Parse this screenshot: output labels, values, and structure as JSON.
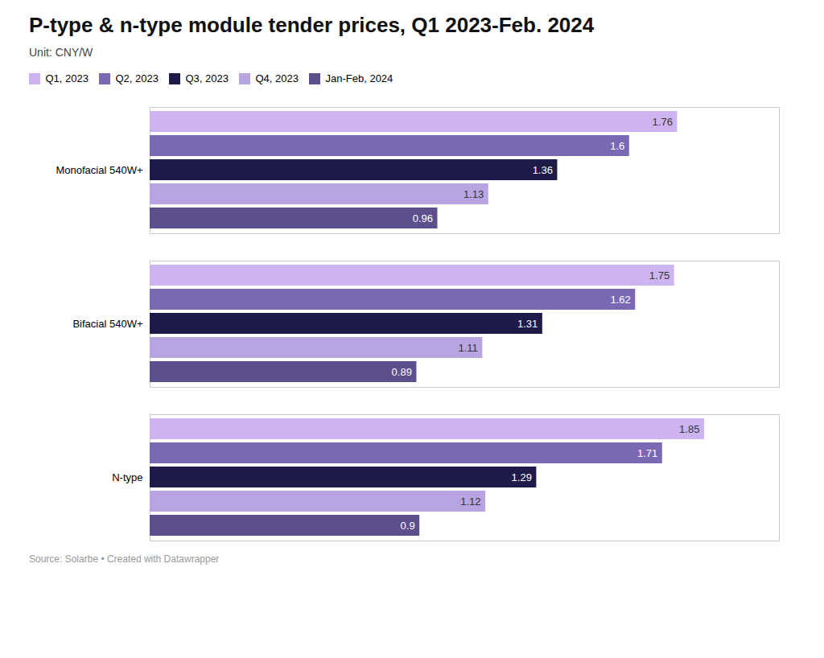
{
  "chart_data": {
    "type": "bar",
    "orientation": "horizontal",
    "title": "P-type & n-type module tender prices, Q1 2023-Feb. 2024",
    "subtitle": "Unit: CNY/W",
    "caption": "Source: Solarbe • Created with Datawrapper",
    "categories": [
      "Monofacial 540W+",
      "Bifacial 540W+",
      "N-type"
    ],
    "series": [
      {
        "name": "Q1, 2023",
        "color": "#cdb4f0",
        "values": [
          1.76,
          1.75,
          1.85
        ]
      },
      {
        "name": "Q2, 2023",
        "color": "#7b68b5",
        "values": [
          1.6,
          1.62,
          1.71
        ]
      },
      {
        "name": "Q3, 2023",
        "color": "#1e1a4a",
        "values": [
          1.36,
          1.31,
          1.29
        ]
      },
      {
        "name": "Q4, 2023",
        "color": "#b8a4e0",
        "values": [
          1.13,
          1.11,
          1.12
        ]
      },
      {
        "name": "Jan-Feb, 2024",
        "color": "#5c4f8c",
        "values": [
          0.96,
          0.89,
          0.9
        ]
      }
    ],
    "xlim": [
      0,
      2.1
    ],
    "grid": false,
    "legend": "top",
    "data_labels": true,
    "tick_labels": "y"
  }
}
